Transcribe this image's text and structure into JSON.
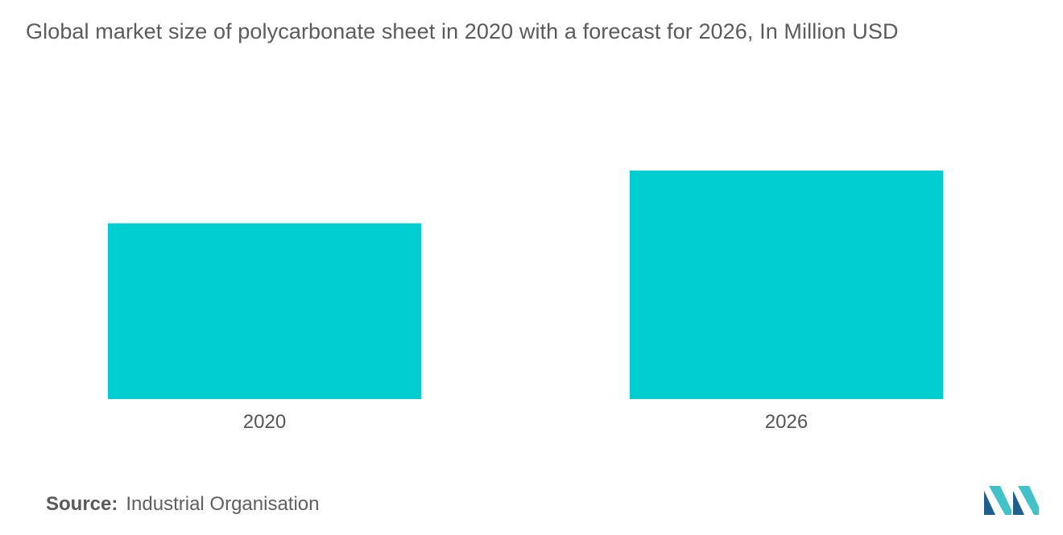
{
  "chart_data": {
    "type": "bar",
    "title": "Global market size of polycarbonate sheet in 2020 with a forecast for 2026, In Million USD",
    "categories": [
      "2020",
      "2026"
    ],
    "values": [
      1.0,
      1.3
    ],
    "xlabel": "",
    "ylabel": "",
    "ylim": [
      0,
      1.3
    ],
    "grid": false,
    "legend": "none",
    "colors": {
      "bar": "#00ced1"
    }
  },
  "source": {
    "label": "Source:",
    "text": "Industrial Organisation"
  },
  "logo": {
    "icon": "mordor-intelligence-logo-icon",
    "colors": [
      "#1f5f8b",
      "#3fc3c9"
    ]
  }
}
